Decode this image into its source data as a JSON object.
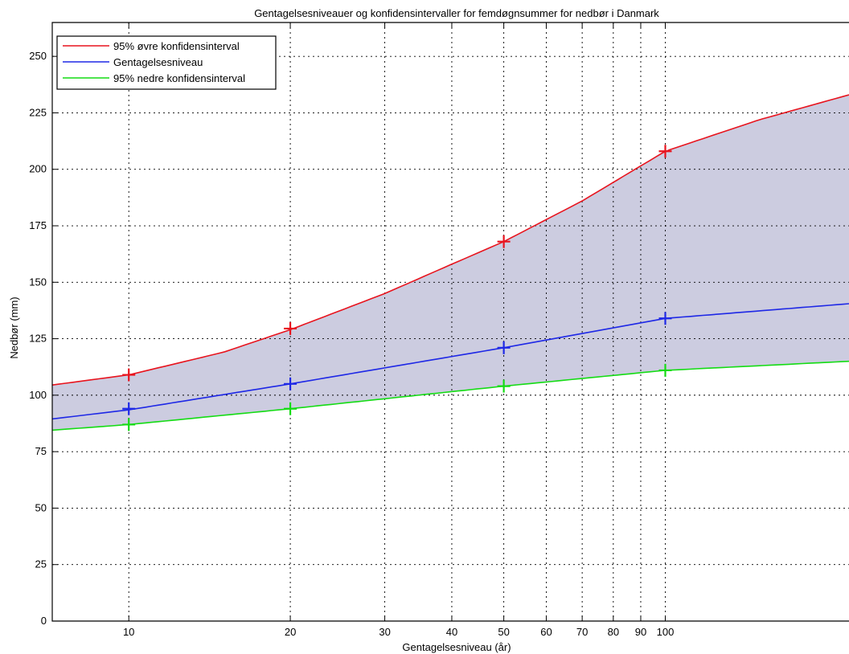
{
  "chart_data": {
    "type": "line",
    "title": "Gentagelsesniveauer og konfidensintervaller for femdøgnsummer for nedbør i Danmark",
    "xlabel": "Gentagelsesniveau (år)",
    "ylabel": "Nedbør (mm)",
    "x_scale": "log",
    "xlim": [
      7.2,
      220
    ],
    "ylim": [
      0,
      265
    ],
    "x_ticks": [
      10,
      20,
      30,
      40,
      50,
      60,
      70,
      80,
      90,
      100
    ],
    "y_ticks": [
      0,
      25,
      50,
      75,
      100,
      125,
      150,
      175,
      200,
      225,
      250
    ],
    "grid": true,
    "legend_position": "top-left",
    "fill_between": {
      "upper_series": "95% øvre konfidensinterval",
      "lower_series": "95% nedre konfidensinterval",
      "color": "#cccce0"
    },
    "series": [
      {
        "name": "95% øvre konfidensinterval",
        "color": "#e8141e",
        "x": [
          7.2,
          10,
          15,
          20,
          30,
          40,
          50,
          70,
          100,
          150,
          220
        ],
        "y": [
          104.5,
          109,
          119,
          129,
          145,
          158,
          168,
          186,
          208,
          222,
          233
        ],
        "markers_x": [
          10,
          20,
          50,
          100
        ],
        "markers_y": [
          109,
          129.5,
          168,
          208
        ]
      },
      {
        "name": "Gentagelsesniveau",
        "color": "#1e28e6",
        "x": [
          7.2,
          10,
          20,
          50,
          100,
          220
        ],
        "y": [
          89.5,
          93.5,
          105,
          121,
          134,
          140.5
        ],
        "markers_x": [
          10,
          20,
          50,
          100
        ],
        "markers_y": [
          94,
          105,
          121,
          134
        ]
      },
      {
        "name": "95% nedre konfidensinterval",
        "color": "#14dc14",
        "x": [
          7.2,
          10,
          20,
          50,
          100,
          220
        ],
        "y": [
          84.5,
          87,
          94,
          104,
          111,
          115
        ],
        "markers_x": [
          10,
          20,
          50,
          100
        ],
        "markers_y": [
          87,
          94,
          104,
          111
        ]
      }
    ]
  }
}
